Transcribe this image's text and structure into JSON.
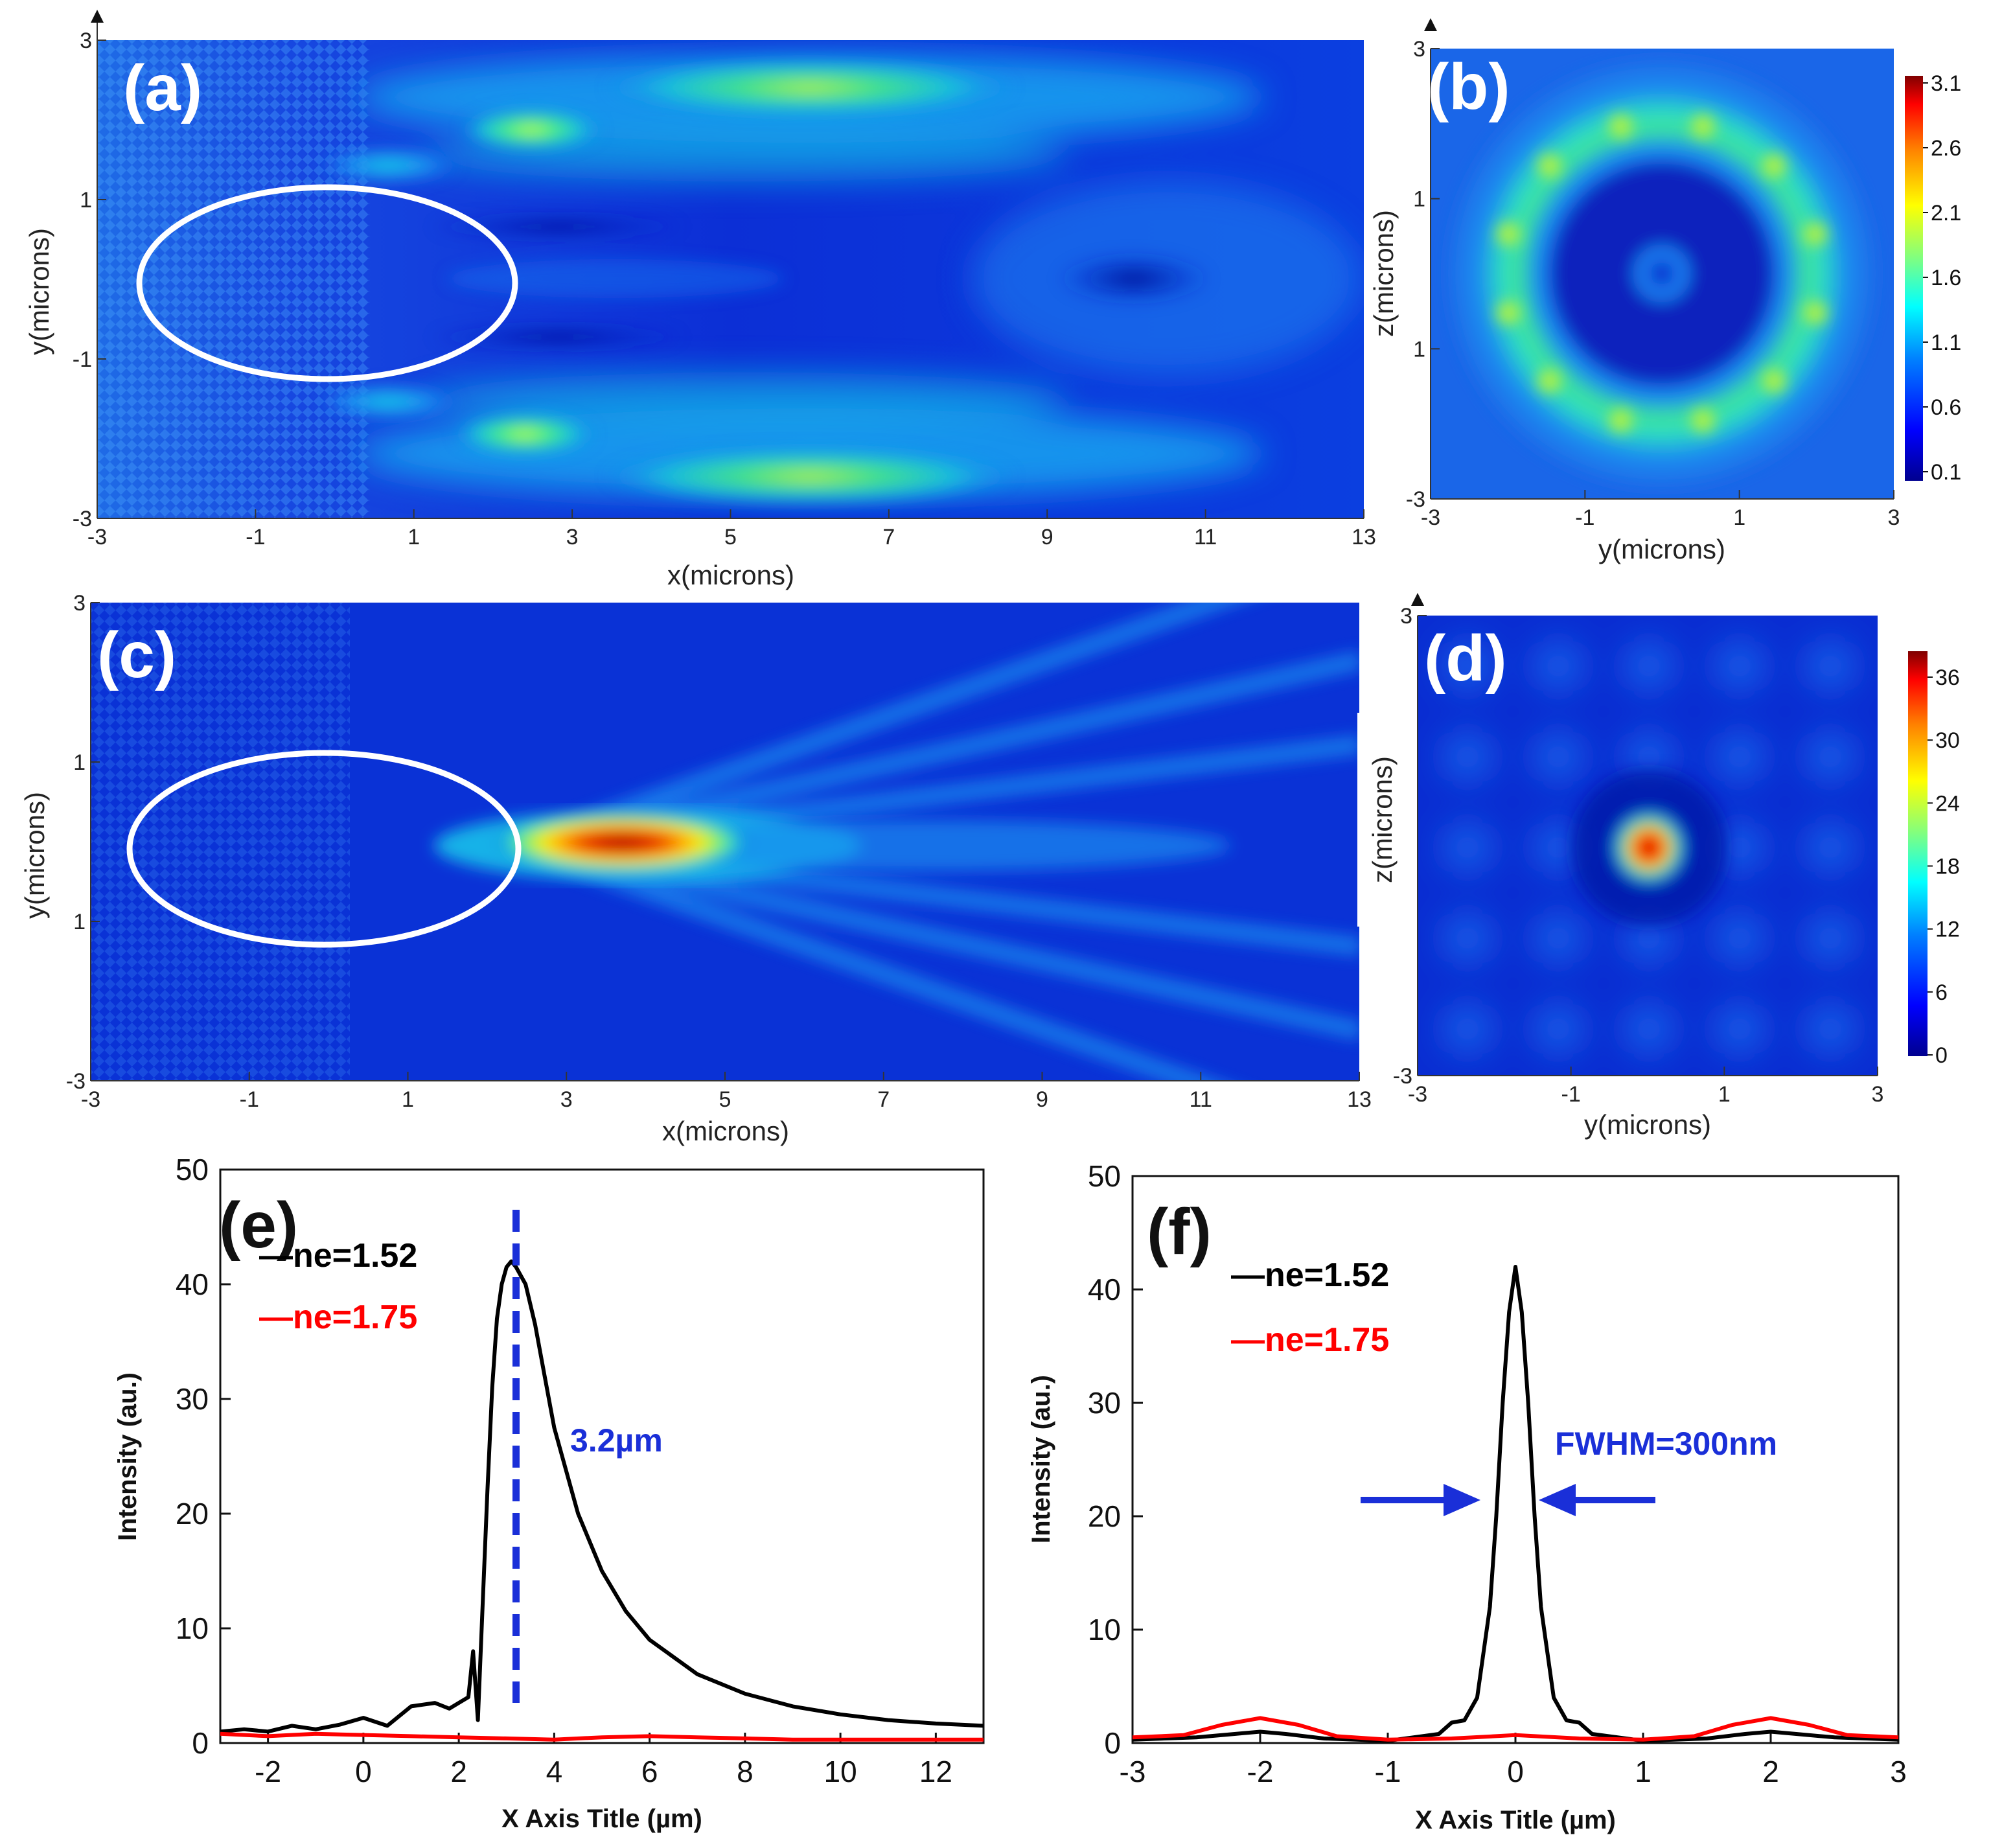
{
  "colors": {
    "jet": [
      "#00008f",
      "#0000ff",
      "#0080ff",
      "#00ffff",
      "#80ff80",
      "#ffff00",
      "#ff8000",
      "#ff0000",
      "#800000"
    ],
    "ellipse": "#ffffff",
    "black_series": "#000000",
    "red_series": "#ff0000",
    "annotation_blue": "#1a2fd8"
  },
  "chart_data": [
    {
      "panel": "(a)",
      "type": "heatmap",
      "xlabel": "x(microns)",
      "ylabel": "y(microns)",
      "xticks": [
        "-3",
        "-1",
        "1",
        "3",
        "5",
        "7",
        "9",
        "11",
        "13"
      ],
      "yticks": [
        "3",
        "1",
        "-1",
        "-3"
      ],
      "xlim": [
        -3,
        13
      ],
      "ylim": [
        -3,
        3
      ],
      "description_overlay": "white ellipse centered at x=0, y=0"
    },
    {
      "panel": "(b)",
      "type": "heatmap",
      "xlabel": "y(microns)",
      "ylabel": "z(microns)",
      "xticks": [
        "-3",
        "-1",
        "1",
        "3"
      ],
      "yticks": [
        "3",
        "1",
        "1",
        "-3"
      ],
      "colorbar_ticks": [
        "3.1",
        "2.6",
        "2.1",
        "1.6",
        "1.1",
        "0.6",
        "0.1"
      ],
      "colorbar_range": [
        0.1,
        3.1
      ]
    },
    {
      "panel": "(c)",
      "type": "heatmap",
      "xlabel": "x(microns)",
      "ylabel": "y(microns)",
      "xticks": [
        "-3",
        "-1",
        "1",
        "3",
        "5",
        "7",
        "9",
        "11",
        "13"
      ],
      "yticks": [
        "3",
        "1",
        "1",
        "-3"
      ],
      "xlim": [
        -3,
        13
      ],
      "ylim": [
        -3,
        3
      ],
      "hotspot_x": 3.2
    },
    {
      "panel": "(d)",
      "type": "heatmap",
      "xlabel": "y(microns)",
      "ylabel": "z(microns)",
      "xticks": [
        "-3",
        "-1",
        "1",
        "3"
      ],
      "yticks": [
        "3",
        "-3"
      ],
      "colorbar_ticks": [
        "36",
        "30",
        "24",
        "18",
        "12",
        "6",
        "0"
      ],
      "colorbar_range": [
        0,
        36
      ]
    },
    {
      "panel": "(e)",
      "type": "line",
      "xlabel": "X Axis Title (µm)",
      "ylabel": "Intensity (au.)",
      "xlim": [
        -3,
        13
      ],
      "ylim": [
        0,
        50
      ],
      "xticks": [
        -2,
        0,
        2,
        4,
        6,
        8,
        10,
        12
      ],
      "yticks": [
        0,
        10,
        20,
        30,
        40,
        50
      ],
      "annotation": "3.2µm",
      "marker_x": 3.2,
      "series": [
        {
          "name": "—ne=1.52",
          "legend_sub": "e",
          "color": "#000000",
          "x": [
            -3,
            -2.5,
            -2,
            -1.5,
            -1,
            -0.5,
            0,
            0.5,
            1,
            1.5,
            1.8,
            2.0,
            2.2,
            2.3,
            2.4,
            2.5,
            2.6,
            2.7,
            2.8,
            2.9,
            3.0,
            3.1,
            3.2,
            3.4,
            3.6,
            3.8,
            4.0,
            4.5,
            5.0,
            5.5,
            6.0,
            7.0,
            8.0,
            9.0,
            10.0,
            11.0,
            12.0,
            13.0
          ],
          "y": [
            1.0,
            1.2,
            1.0,
            1.5,
            1.2,
            1.6,
            2.2,
            1.5,
            3.2,
            3.5,
            3.0,
            3.5,
            4.0,
            8.0,
            2.0,
            12.0,
            22.0,
            31.0,
            37.0,
            40.0,
            41.5,
            42.0,
            41.5,
            40.0,
            36.5,
            32.0,
            27.5,
            20.0,
            15.0,
            11.5,
            9.0,
            6.0,
            4.3,
            3.2,
            2.5,
            2.0,
            1.7,
            1.5
          ]
        },
        {
          "name": "—ne=1.75",
          "legend_sub": "e",
          "color": "#ff0000",
          "x": [
            -3,
            -2,
            -1,
            0,
            1,
            2,
            3,
            4,
            5,
            6,
            7,
            8,
            9,
            10,
            11,
            12,
            13
          ],
          "y": [
            0.8,
            0.6,
            0.8,
            0.7,
            0.6,
            0.5,
            0.4,
            0.3,
            0.5,
            0.6,
            0.5,
            0.4,
            0.3,
            0.3,
            0.3,
            0.3,
            0.3
          ]
        }
      ]
    },
    {
      "panel": "(f)",
      "type": "line",
      "xlabel": "X Axis Title (µm)",
      "ylabel": "Intensity (au.)",
      "xlim": [
        -3,
        3
      ],
      "ylim": [
        0,
        50
      ],
      "xticks": [
        -3,
        -2,
        -1,
        0,
        1,
        2,
        3
      ],
      "yticks": [
        0,
        10,
        20,
        30,
        40,
        50
      ],
      "annotation": "FWHM=300nm",
      "series": [
        {
          "name": "—ne=1.52",
          "legend_sub": "e",
          "color": "#000000",
          "x": [
            -3,
            -2.5,
            -2.2,
            -2.0,
            -1.8,
            -1.5,
            -1.0,
            -0.6,
            -0.5,
            -0.4,
            -0.3,
            -0.2,
            -0.15,
            -0.1,
            -0.05,
            0,
            0.05,
            0.1,
            0.15,
            0.2,
            0.3,
            0.4,
            0.5,
            0.6,
            1.0,
            1.5,
            1.8,
            2.0,
            2.2,
            2.5,
            3.0
          ],
          "y": [
            0.3,
            0.5,
            0.8,
            1.0,
            0.8,
            0.4,
            0.2,
            0.8,
            1.8,
            2.0,
            4.0,
            12.0,
            20.0,
            30.0,
            38.0,
            42.0,
            38.0,
            30.0,
            20.0,
            12.0,
            4.0,
            2.0,
            1.8,
            0.8,
            0.2,
            0.4,
            0.8,
            1.0,
            0.8,
            0.5,
            0.3
          ]
        },
        {
          "name": "—ne=1.75",
          "legend_sub": "e",
          "color": "#ff0000",
          "x": [
            -3,
            -2.6,
            -2.3,
            -2.0,
            -1.7,
            -1.4,
            -1.0,
            -0.5,
            0,
            0.5,
            1.0,
            1.4,
            1.7,
            2.0,
            2.3,
            2.6,
            3.0
          ],
          "y": [
            0.5,
            0.7,
            1.6,
            2.2,
            1.6,
            0.6,
            0.3,
            0.4,
            0.7,
            0.4,
            0.3,
            0.6,
            1.6,
            2.2,
            1.6,
            0.7,
            0.5
          ]
        }
      ]
    }
  ]
}
